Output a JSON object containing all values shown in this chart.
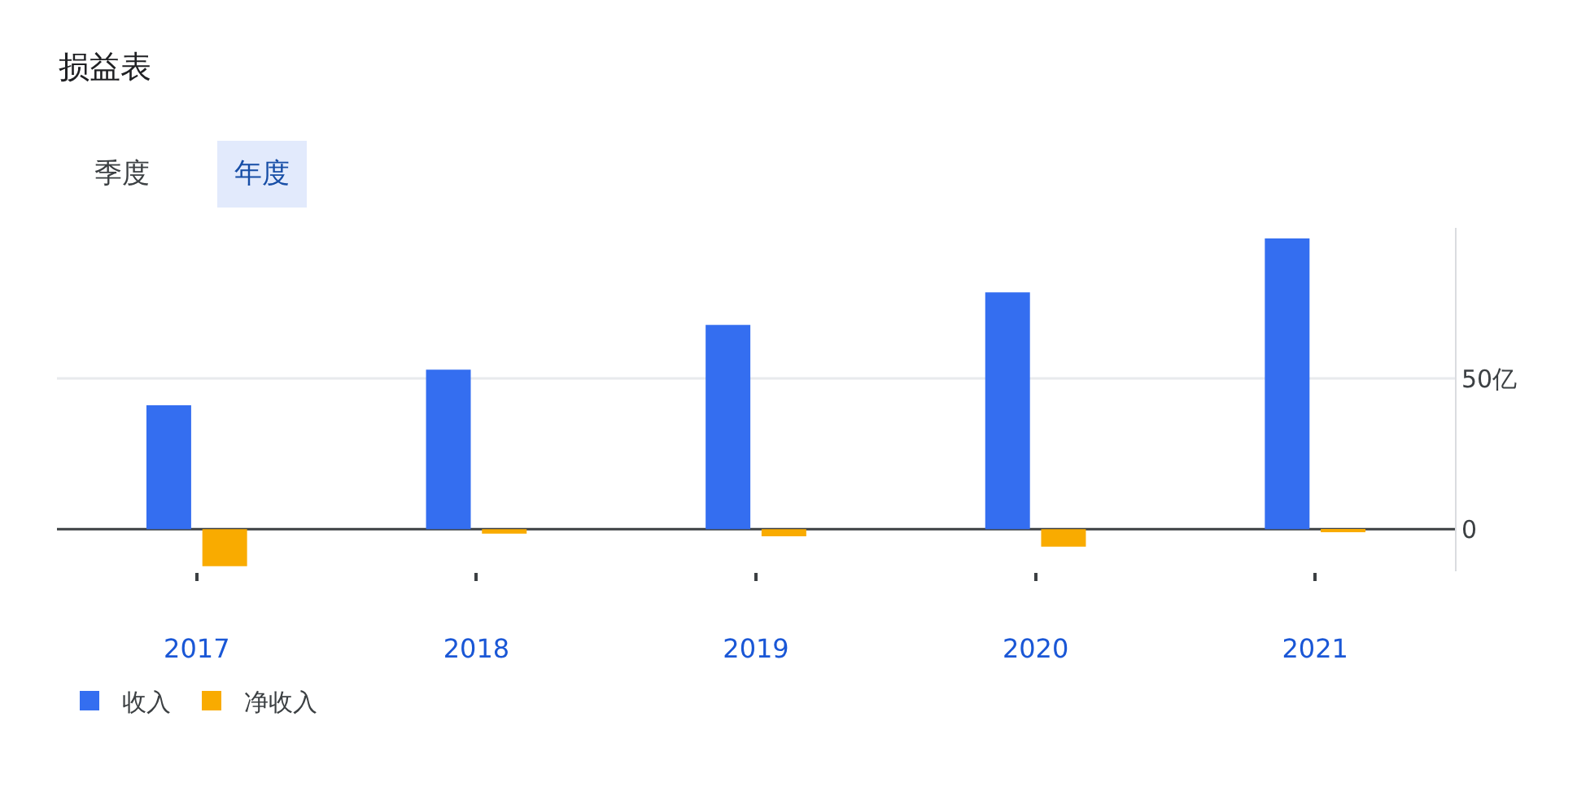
{
  "chart_data": {
    "type": "bar",
    "title": "损益表",
    "annotations": [
      "季度",
      "年度"
    ],
    "categories": [
      "2017",
      "2018",
      "2019",
      "2020",
      "2021"
    ],
    "series": [
      {
        "name": "收入",
        "color": "#346ef0",
        "values": [
          41.1,
          52.9,
          67.8,
          78.6,
          96.5
        ]
      },
      {
        "name": "净收入",
        "color": "#f9ab00",
        "values": [
          -12.3,
          -1.5,
          -2.4,
          -5.8,
          -0.9
        ]
      }
    ],
    "ylim": [
      -14,
      100
    ],
    "yticks": [
      {
        "value": 0,
        "label": "0"
      },
      {
        "value": 50,
        "label": "50亿"
      }
    ],
    "ref_lines": [
      {
        "axis": "y",
        "value": 50,
        "color": "#e8eaed"
      },
      {
        "axis": "y",
        "value": 0,
        "color": "#3c4043"
      }
    ],
    "legend": "bottom left"
  }
}
